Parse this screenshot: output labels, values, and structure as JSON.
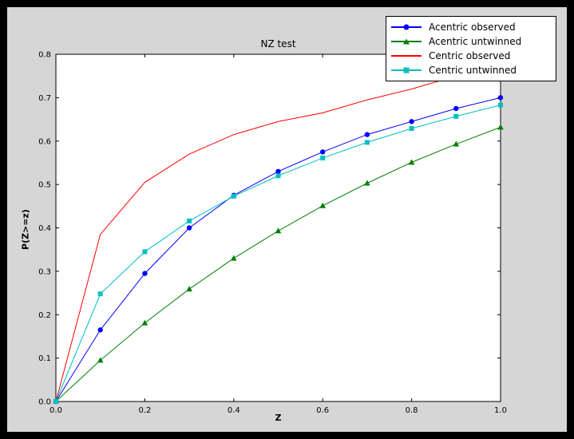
{
  "window": {
    "background": "#000000",
    "figure_background": "#d6d6d6",
    "axes_background": "#ffffff"
  },
  "chart_data": {
    "type": "line",
    "title": "NZ test",
    "xlabel": "Z",
    "ylabel": "P(Z>=z)",
    "xlim": [
      0.0,
      1.0
    ],
    "ylim": [
      0.0,
      0.8
    ],
    "grid": false,
    "legend_position": "upper right",
    "x_ticks": [
      0.0,
      0.2,
      0.4,
      0.6,
      0.8,
      1.0
    ],
    "x_tick_labels": [
      "0.0",
      "0.2",
      "0.4",
      "0.6",
      "0.8",
      "1.0"
    ],
    "y_ticks": [
      0.0,
      0.1,
      0.2,
      0.3,
      0.4,
      0.5,
      0.6,
      0.7,
      0.8
    ],
    "y_tick_labels": [
      "0.0",
      "0.1",
      "0.2",
      "0.3",
      "0.4",
      "0.5",
      "0.6",
      "0.7",
      "0.8"
    ],
    "x": [
      0.0,
      0.1,
      0.2,
      0.3,
      0.4,
      0.5,
      0.6,
      0.7,
      0.8,
      0.9,
      1.0
    ],
    "series": [
      {
        "name": "Acentric observed",
        "color": "#0000ff",
        "marker": "circle",
        "values": [
          0.0,
          0.165,
          0.295,
          0.4,
          0.475,
          0.53,
          0.575,
          0.615,
          0.645,
          0.675,
          0.7
        ]
      },
      {
        "name": "Acentric untwinned",
        "color": "#007f00",
        "marker": "triangle",
        "values": [
          0.0,
          0.095,
          0.181,
          0.259,
          0.33,
          0.393,
          0.451,
          0.503,
          0.551,
          0.593,
          0.632
        ]
      },
      {
        "name": "Centric observed",
        "color": "#ff0000",
        "marker": "none",
        "values": [
          0.0,
          0.385,
          0.505,
          0.57,
          0.615,
          0.645,
          0.665,
          0.695,
          0.72,
          0.75,
          0.765
        ]
      },
      {
        "name": "Centric untwinned",
        "color": "#00bfbf",
        "marker": "square",
        "values": [
          0.0,
          0.248,
          0.345,
          0.416,
          0.473,
          0.52,
          0.561,
          0.597,
          0.629,
          0.657,
          0.683
        ]
      }
    ]
  }
}
